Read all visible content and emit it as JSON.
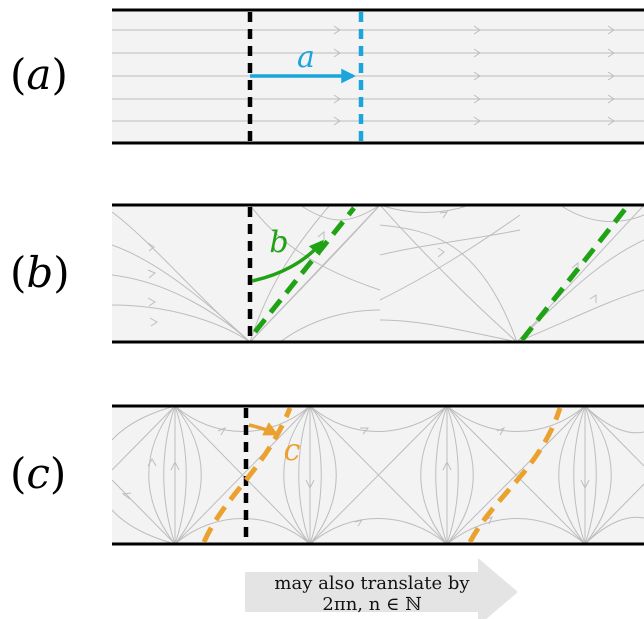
{
  "colors": {
    "panel_fill": "#f3f3f3",
    "border": "#000000",
    "flow_line": "#bdbdbd",
    "a": "#1aa6dd",
    "b": "#1fa214",
    "c": "#eba12f",
    "ref_dash": "#000000",
    "note_arrow": "#e4e4e4"
  },
  "panels": [
    {
      "id": "a",
      "label_open": "(",
      "label_letter": "a",
      "label_close": ")",
      "curve_label": "a"
    },
    {
      "id": "b",
      "label_open": "(",
      "label_letter": "b",
      "label_close": ")",
      "curve_label": "b"
    },
    {
      "id": "c",
      "label_open": "(",
      "label_letter": "c",
      "label_close": ")",
      "curve_label": "c"
    }
  ],
  "note": {
    "line1": "may also translate by",
    "line2": "2πn, n ∈ ℕ",
    "arrow_icon": "right-arrow-icon"
  }
}
